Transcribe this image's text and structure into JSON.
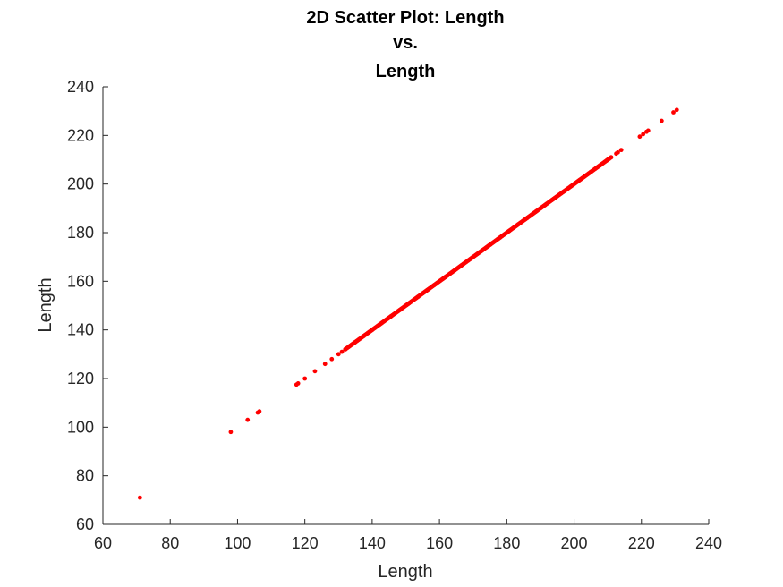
{
  "chart_data": {
    "type": "scatter",
    "title": [
      "2D Scatter Plot: Length",
      "vs.",
      "Length"
    ],
    "xlabel": "Length",
    "ylabel": "Length",
    "xlim": [
      60,
      240
    ],
    "ylim": [
      60,
      240
    ],
    "xticks": [
      60,
      80,
      100,
      120,
      140,
      160,
      180,
      200,
      220,
      240
    ],
    "yticks": [
      60,
      80,
      100,
      120,
      140,
      160,
      180,
      200,
      220,
      240
    ],
    "grid": false,
    "marker_color": "#ff0000",
    "series": [
      {
        "points_x": [
          71,
          98,
          103,
          106,
          106.5,
          117.5,
          118,
          120,
          123,
          126,
          128,
          130,
          131,
          132,
          133,
          134,
          135,
          210,
          211,
          212.5,
          213,
          214,
          219.5,
          220.5,
          221.5,
          222,
          226,
          229.5,
          230.5
        ],
        "points_y": [
          71,
          98,
          103,
          106,
          106.5,
          117.5,
          118,
          120,
          123,
          126,
          128,
          130,
          131,
          132,
          133,
          134,
          135,
          210,
          211,
          212.5,
          213,
          214,
          219.5,
          220.5,
          221.5,
          222,
          226,
          229.5,
          230.5
        ],
        "dense_segment": {
          "x": [
            132,
            211
          ],
          "y": [
            132,
            211
          ]
        }
      }
    ]
  }
}
